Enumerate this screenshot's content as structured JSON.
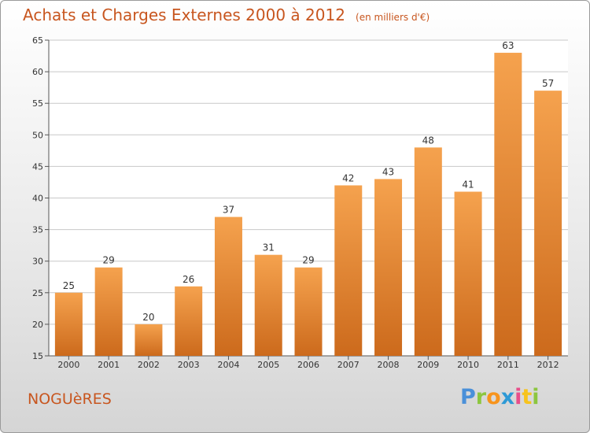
{
  "title": "Achats et Charges Externes 2000 à 2012",
  "subtitle": "(en milliers d'€)",
  "commune": "NOGUèRES",
  "logo_text": "Proxiti",
  "colors": {
    "bar_top": "#f5a24e",
    "bar_bottom": "#cc6a1c",
    "title": "#c8561f",
    "grid": "#c8c8c8"
  },
  "chart_data": {
    "type": "bar",
    "title": "Achats et Charges Externes 2000 à 2012",
    "subtitle": "(en milliers d'€)",
    "categories": [
      "2000",
      "2001",
      "2002",
      "2003",
      "2004",
      "2005",
      "2006",
      "2007",
      "2008",
      "2009",
      "2010",
      "2011",
      "2012"
    ],
    "values": [
      25,
      29,
      20,
      26,
      37,
      31,
      29,
      42,
      43,
      48,
      41,
      63,
      57
    ],
    "ylim": [
      15,
      65
    ],
    "yticks": [
      15,
      20,
      25,
      30,
      35,
      40,
      45,
      50,
      55,
      60,
      65
    ],
    "grid": true,
    "xlabel": "",
    "ylabel": ""
  }
}
